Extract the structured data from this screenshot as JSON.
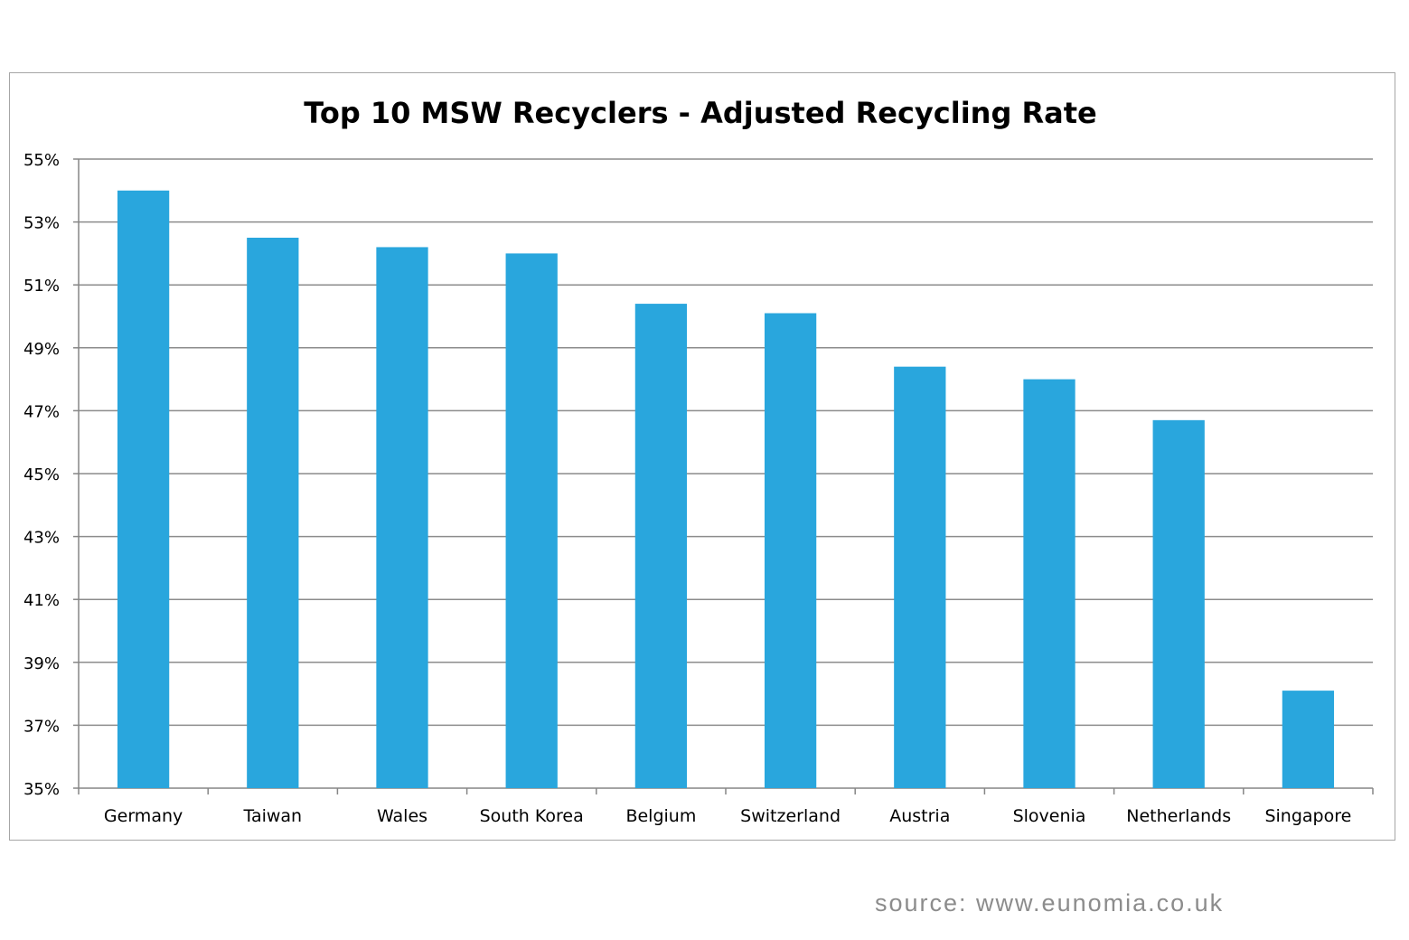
{
  "chart_data": {
    "type": "bar",
    "title": "Top 10 MSW Recyclers - Adjusted Recycling Rate",
    "categories": [
      "Germany",
      "Taiwan",
      "Wales",
      "South Korea",
      "Belgium",
      "Switzerland",
      "Austria",
      "Slovenia",
      "Netherlands",
      "Singapore"
    ],
    "values": [
      54.0,
      52.5,
      52.2,
      52.0,
      50.4,
      50.1,
      48.4,
      48.0,
      46.7,
      38.1
    ],
    "ylim": [
      35,
      55
    ],
    "yticks": [
      35,
      37,
      39,
      41,
      43,
      45,
      47,
      49,
      51,
      53,
      55
    ],
    "ytick_suffix": "%",
    "grid": true,
    "bar_color": "#29a6dd"
  },
  "source": "source: www.eunomia.co.uk"
}
